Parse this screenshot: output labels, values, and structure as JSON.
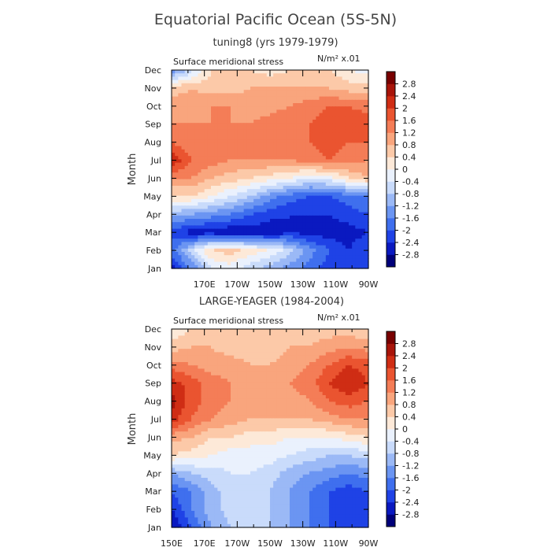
{
  "page": {
    "title": "Equatorial Pacific Ocean (5S-5N)"
  },
  "palette": [
    "#00007a",
    "#0a19c0",
    "#1f42e6",
    "#3f6fee",
    "#6b95f2",
    "#9bb9f6",
    "#c9dbfb",
    "#eaf1fd",
    "#fde9d8",
    "#fcc9a8",
    "#f9a57d",
    "#f47d57",
    "#ea5430",
    "#cf2d14",
    "#a8140a",
    "#780000"
  ],
  "chart_data": [
    {
      "type": "heatmap",
      "subtitle": "tuning8 (yrs 1979-1979)",
      "variable": "Surface meridional stress",
      "units": "N/m² x.01",
      "ylabel": "Month",
      "y_ticks": [
        "Jan",
        "Feb",
        "Mar",
        "Apr",
        "May",
        "Jun",
        "Jul",
        "Aug",
        "Sep",
        "Oct",
        "Nov",
        "Dec"
      ],
      "x_ticks": [
        "170E",
        "170W",
        "150W",
        "130W",
        "110W",
        "90W"
      ],
      "x_tick_lons": [
        170,
        190,
        210,
        230,
        250,
        270
      ],
      "x_range": [
        150,
        270
      ],
      "y_range": [
        1,
        12
      ],
      "legend_levels": [
        "2.8",
        "2.4",
        "2",
        "1.6",
        "1.2",
        "0.8",
        "0.4",
        "0",
        "-0.4",
        "-0.8",
        "-1.2",
        "-1.6",
        "-2",
        "-2.4",
        "-2.8"
      ],
      "lons": [
        150,
        162,
        174,
        186,
        198,
        210,
        222,
        234,
        246,
        258,
        270
      ],
      "values": [
        [
          -2.6,
          -1.6,
          -0.4,
          -0.2,
          -0.6,
          -1.0,
          -1.4,
          -1.8,
          -2.2,
          -2.4,
          -2.2
        ],
        [
          -1.8,
          -0.6,
          0.4,
          0.6,
          0.2,
          0.0,
          -0.6,
          -1.4,
          -2.0,
          -2.4,
          -2.0
        ],
        [
          -2.2,
          -2.6,
          -2.6,
          -2.8,
          -2.6,
          -2.8,
          -2.4,
          -2.6,
          -2.6,
          -2.6,
          -2.4
        ],
        [
          -1.0,
          -1.2,
          -1.4,
          -1.6,
          -2.0,
          -2.2,
          -2.4,
          -2.4,
          -2.4,
          -2.2,
          -2.0
        ],
        [
          0.4,
          0.4,
          0.0,
          -0.4,
          -0.8,
          -1.4,
          -1.8,
          -2.0,
          -2.0,
          -1.8,
          -1.6
        ],
        [
          1.2,
          1.2,
          0.8,
          0.6,
          0.4,
          0.2,
          0.0,
          -0.4,
          -0.2,
          0.4,
          0.8
        ],
        [
          2.4,
          1.6,
          1.4,
          1.2,
          1.2,
          1.2,
          1.2,
          1.4,
          1.6,
          1.4,
          1.2
        ],
        [
          1.6,
          1.2,
          1.2,
          1.2,
          1.2,
          1.2,
          1.4,
          1.6,
          1.8,
          1.6,
          1.6
        ],
        [
          1.2,
          1.2,
          1.2,
          1.2,
          1.2,
          1.4,
          1.6,
          1.6,
          1.8,
          2.0,
          1.8
        ],
        [
          1.0,
          1.0,
          1.2,
          1.2,
          1.0,
          1.0,
          1.2,
          1.4,
          1.6,
          1.6,
          1.4
        ],
        [
          0.6,
          0.8,
          0.6,
          0.6,
          0.8,
          0.8,
          0.8,
          0.8,
          0.8,
          0.6,
          0.6
        ],
        [
          -1.6,
          -0.6,
          0.4,
          0.6,
          0.4,
          0.2,
          0.4,
          0.6,
          0.4,
          0.0,
          -0.2
        ]
      ]
    },
    {
      "type": "heatmap",
      "subtitle": "LARGE-YEAGER (1984-2004)",
      "variable": "Surface meridional stress",
      "units": "N/m² x.01",
      "ylabel": "Month",
      "y_ticks": [
        "Jan",
        "Feb",
        "Mar",
        "Apr",
        "May",
        "Jun",
        "Jul",
        "Aug",
        "Sep",
        "Oct",
        "Nov",
        "Dec"
      ],
      "x_ticks": [
        "150E",
        "170E",
        "170W",
        "150W",
        "130W",
        "110W",
        "90W"
      ],
      "x_tick_lons": [
        150,
        170,
        190,
        210,
        230,
        250,
        270
      ],
      "x_range": [
        150,
        270
      ],
      "y_range": [
        1,
        12
      ],
      "legend_levels": [
        "2.8",
        "2.4",
        "2",
        "1.6",
        "1.2",
        "0.8",
        "0.4",
        "0",
        "-0.4",
        "-0.8",
        "-1.2",
        "-1.6",
        "-2",
        "-2.4",
        "-2.8"
      ],
      "lons": [
        150,
        162,
        174,
        186,
        198,
        210,
        222,
        234,
        246,
        258,
        270
      ],
      "values": [
        [
          -2.8,
          -2.0,
          -1.2,
          -0.8,
          -0.4,
          -0.8,
          -1.2,
          -1.6,
          -2.0,
          -2.4,
          -2.2
        ],
        [
          -2.4,
          -1.6,
          -1.0,
          -0.6,
          -0.4,
          -0.8,
          -1.2,
          -1.6,
          -2.0,
          -2.2,
          -2.0
        ],
        [
          -2.0,
          -1.6,
          -1.0,
          -0.6,
          -0.4,
          -0.8,
          -1.2,
          -1.6,
          -2.0,
          -2.2,
          -2.0
        ],
        [
          -1.2,
          -0.8,
          -0.6,
          -0.4,
          -0.4,
          -0.6,
          -1.0,
          -1.2,
          -1.4,
          -1.6,
          -1.4
        ],
        [
          0.4,
          0.2,
          0.0,
          -0.2,
          -0.2,
          -0.2,
          -0.4,
          -0.6,
          -0.8,
          -0.8,
          -0.6
        ],
        [
          1.0,
          0.8,
          0.4,
          0.4,
          0.2,
          0.2,
          0.0,
          0.0,
          0.0,
          0.2,
          0.4
        ],
        [
          2.2,
          1.6,
          1.2,
          1.0,
          0.8,
          0.8,
          0.8,
          0.8,
          1.0,
          1.2,
          1.2
        ],
        [
          2.6,
          1.8,
          1.4,
          1.2,
          1.0,
          1.0,
          1.0,
          1.2,
          1.6,
          1.8,
          1.6
        ],
        [
          2.2,
          1.8,
          1.4,
          1.2,
          1.0,
          1.0,
          1.2,
          1.4,
          2.0,
          2.4,
          2.0
        ],
        [
          1.4,
          1.2,
          1.0,
          1.0,
          0.8,
          0.8,
          1.0,
          1.2,
          1.6,
          2.0,
          1.8
        ],
        [
          0.6,
          0.8,
          0.8,
          0.6,
          0.6,
          0.6,
          0.8,
          0.8,
          1.0,
          1.2,
          1.0
        ],
        [
          0.0,
          0.4,
          0.6,
          0.6,
          0.4,
          0.6,
          0.6,
          0.6,
          0.6,
          0.6,
          0.4
        ]
      ]
    }
  ]
}
